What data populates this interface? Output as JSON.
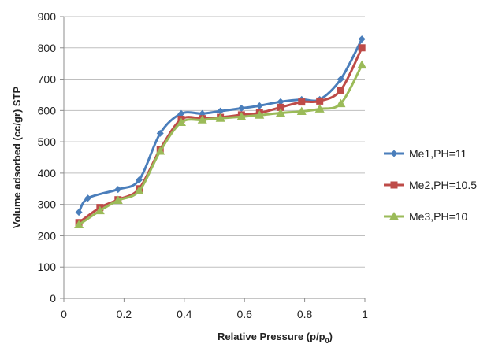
{
  "chart_data": {
    "type": "line",
    "title": "",
    "xlabel": "Relative Pressure (p/p",
    "xlabel_subscript": "0",
    "xlabel_suffix": ")",
    "ylabel": "Volume adsorbed (cc/gr) STP",
    "xlim": [
      0,
      1
    ],
    "ylim": [
      0,
      900
    ],
    "x_ticks": [
      0,
      0.2,
      0.4,
      0.6,
      0.8,
      1
    ],
    "x_tick_labels": [
      "0",
      "0.2",
      "0.4",
      "0.6",
      "0.8",
      "1"
    ],
    "y_ticks": [
      0,
      100,
      200,
      300,
      400,
      500,
      600,
      700,
      800,
      900
    ],
    "y_tick_labels": [
      "0",
      "100",
      "200",
      "300",
      "400",
      "500",
      "600",
      "700",
      "800",
      "900"
    ],
    "grid": "horizontal",
    "legend_position": "right",
    "series": [
      {
        "name": "Me1,PH=11",
        "color": "#4a7ebb",
        "marker": "diamond",
        "x": [
          0.05,
          0.08,
          0.18,
          0.25,
          0.32,
          0.39,
          0.46,
          0.52,
          0.59,
          0.65,
          0.72,
          0.79,
          0.85,
          0.92,
          0.99
        ],
        "y": [
          275,
          320,
          348,
          378,
          527,
          590,
          590,
          598,
          607,
          615,
          628,
          635,
          635,
          700,
          828
        ]
      },
      {
        "name": "Me2,PH=10.5",
        "color": "#be4b48",
        "marker": "square",
        "x": [
          0.05,
          0.12,
          0.18,
          0.25,
          0.32,
          0.39,
          0.46,
          0.52,
          0.59,
          0.65,
          0.72,
          0.79,
          0.85,
          0.92,
          0.99
        ],
        "y": [
          242,
          290,
          315,
          350,
          476,
          572,
          574,
          578,
          586,
          592,
          610,
          627,
          630,
          665,
          800
        ]
      },
      {
        "name": "Me3,PH=10",
        "color": "#9bbb59",
        "marker": "triangle",
        "x": [
          0.05,
          0.12,
          0.18,
          0.25,
          0.32,
          0.39,
          0.46,
          0.52,
          0.59,
          0.65,
          0.72,
          0.79,
          0.85,
          0.92,
          0.99
        ],
        "y": [
          235,
          280,
          313,
          343,
          470,
          562,
          570,
          575,
          580,
          585,
          592,
          597,
          605,
          622,
          745
        ]
      }
    ]
  }
}
